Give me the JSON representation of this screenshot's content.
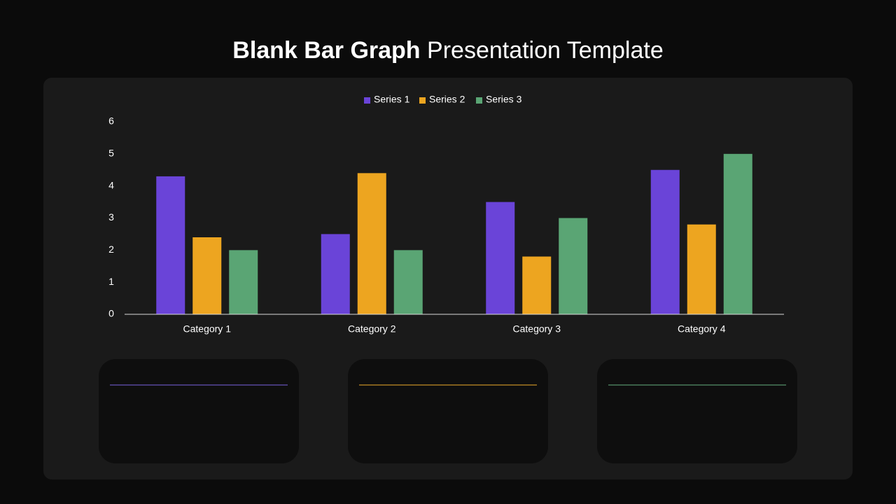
{
  "header": {
    "title_bold": "Blank Bar Graph",
    "title_rest": "Presentation Template"
  },
  "chart_data": {
    "type": "bar",
    "categories": [
      "Category 1",
      "Category 2",
      "Category 3",
      "Category 4"
    ],
    "series": [
      {
        "name": "Series 1",
        "color": "#6a44d8",
        "values": [
          4.3,
          2.5,
          3.5,
          4.5
        ]
      },
      {
        "name": "Series 2",
        "color": "#eda520",
        "values": [
          2.4,
          4.4,
          1.8,
          2.8
        ]
      },
      {
        "name": "Series 3",
        "color": "#5aa574",
        "values": [
          2.0,
          2.0,
          3.0,
          5.0
        ]
      }
    ],
    "ylim": [
      0,
      6
    ],
    "yticks": [
      0,
      1,
      2,
      3,
      4,
      5,
      6
    ],
    "grid": false,
    "legend": "top"
  }
}
